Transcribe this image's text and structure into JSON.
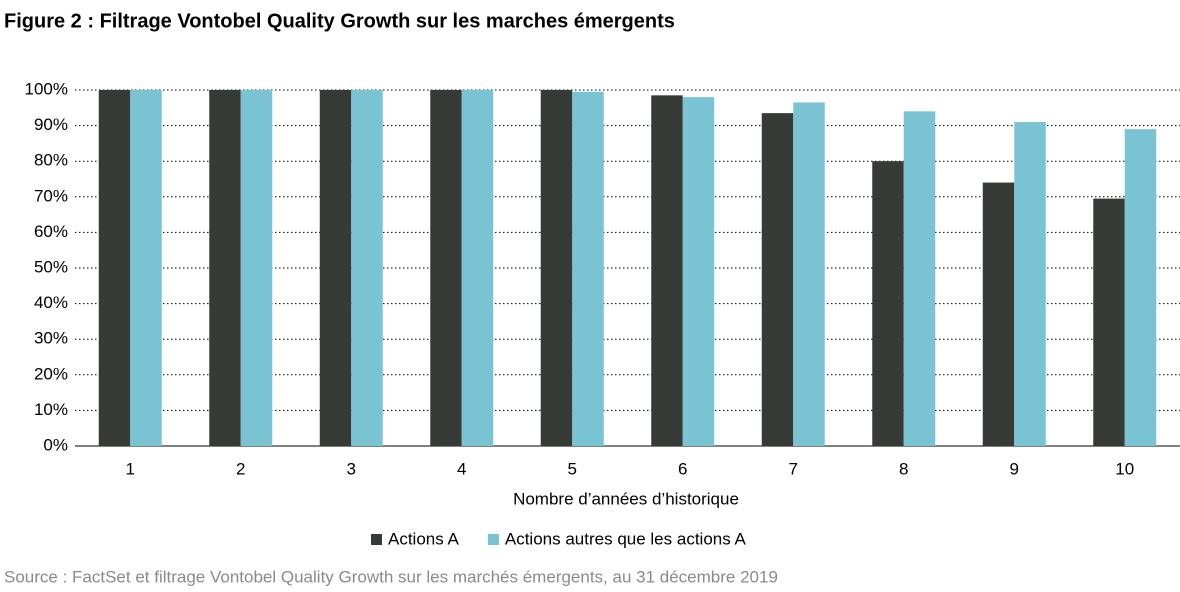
{
  "chart_data": {
    "type": "bar",
    "title": "Figure 2 : Filtrage Vontobel Quality Growth sur les marches émergents",
    "x_label": "Nombre d’années d’historique",
    "source": "Source : FactSet et filtrage Vontobel Quality Growth sur les marchés émergents, au 31 décembre 2019",
    "categories": [
      "1",
      "2",
      "3",
      "4",
      "5",
      "6",
      "7",
      "8",
      "9",
      "10"
    ],
    "series": [
      {
        "name": "Actions A",
        "color": "#363b38",
        "values": [
          100,
          100,
          100,
          100,
          100,
          98.5,
          93.5,
          80,
          74,
          69.5
        ]
      },
      {
        "name": "Actions autres que les actions A",
        "color": "#79c3d2",
        "values": [
          100,
          100,
          100,
          100,
          99.5,
          98,
          96.5,
          94,
          91,
          89
        ]
      }
    ],
    "ylim": [
      0,
      100
    ],
    "yticks": [
      {
        "value": 0,
        "label": "0%"
      },
      {
        "value": 10,
        "label": "10%"
      },
      {
        "value": 20,
        "label": "20%"
      },
      {
        "value": 30,
        "label": "30%"
      },
      {
        "value": 40,
        "label": "40%"
      },
      {
        "value": 50,
        "label": "50%"
      },
      {
        "value": 60,
        "label": "60%"
      },
      {
        "value": 70,
        "label": "70%"
      },
      {
        "value": 80,
        "label": "80%"
      },
      {
        "value": 90,
        "label": "90%"
      },
      {
        "value": 100,
        "label": "100%"
      }
    ],
    "grid": true
  }
}
